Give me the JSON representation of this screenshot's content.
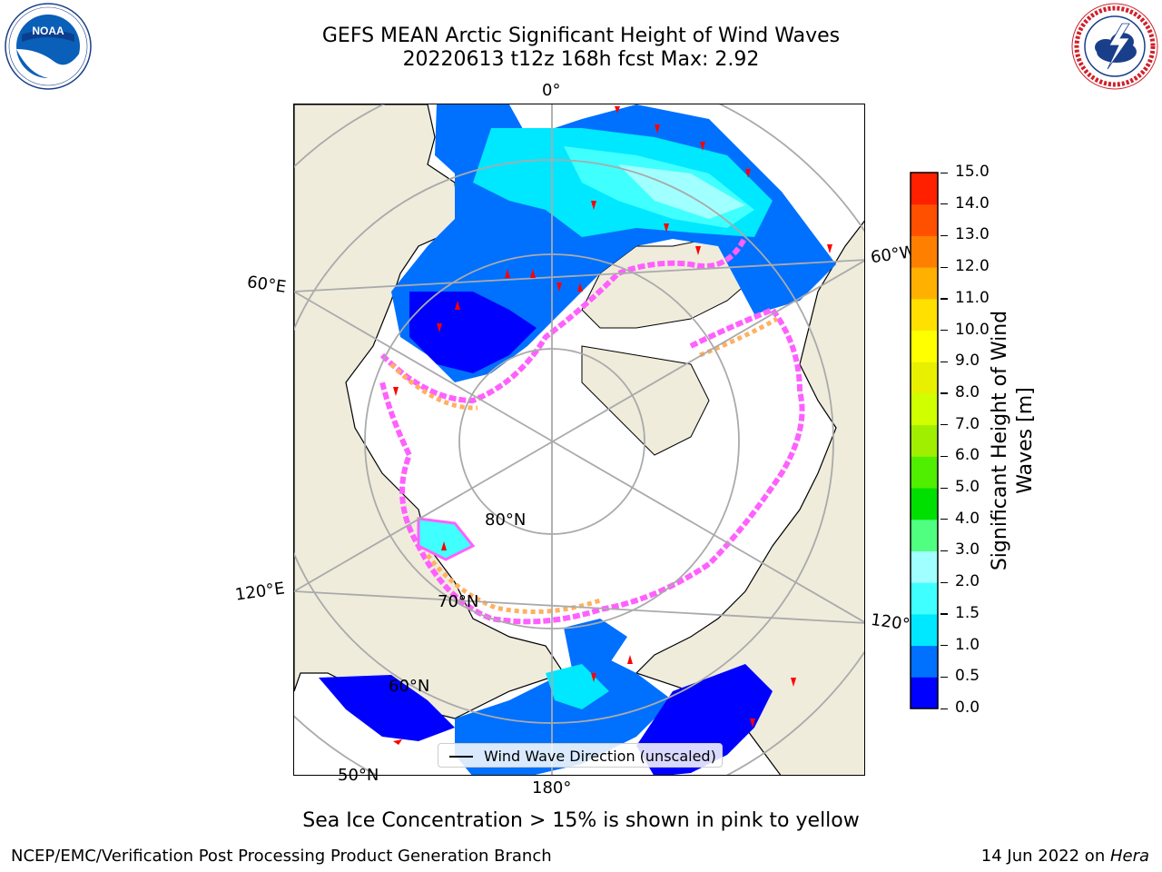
{
  "title": {
    "line1": "GEFS MEAN Arctic Significant Height of Wind Waves",
    "line2": "20220613 t12z 168h fcst   Max: 2.92"
  },
  "logos": {
    "left": {
      "text": "NOAA",
      "ring_text": "NATIONAL OCEANIC AND ATMOSPHERIC ADMINISTRATION",
      "ring_bottom": "U.S. DEPARTMENT OF COMMERCE"
    },
    "right": {
      "ring_text": "NATIONAL WEATHER SERVICE"
    }
  },
  "map": {
    "projection": "north-polar-stereographic",
    "lon_labels": {
      "top": "0°",
      "bottom": "180°",
      "left_upper": "60°E",
      "left_lower": "120°E",
      "right_upper": "60°W",
      "right_lower": "120°W"
    },
    "lat_labels": {
      "lat80": "80°N",
      "lat70": "70°N",
      "lat60": "60°N",
      "lat50": "50°N"
    },
    "colors": {
      "land": "#efecdc",
      "ice_free_ocean": "#ffffff",
      "wave_0": "#0000ff",
      "wave_05": "#0070ff",
      "wave_1": "#00e8ff",
      "wave_15": "#40ffff",
      "wave_2": "#a0ffff",
      "ice_edge_pink": "#ff60ff",
      "ice_edge_orange": "#ffb060",
      "arrow": "#ff0000"
    }
  },
  "legend": {
    "label": "Wind Wave Direction (unscaled)"
  },
  "colorbar": {
    "title_line1": "Significant Height of Wind",
    "title_line2": "Waves [m]",
    "ticks": [
      "15.0",
      "14.0",
      "13.0",
      "12.0",
      "11.0",
      "10.0",
      "9.0",
      "8.0",
      "7.0",
      "6.0",
      "5.0",
      "4.0",
      "3.0",
      "2.0",
      "1.5",
      "1.0",
      "0.5",
      "0.0"
    ],
    "colors": [
      "#0000ff",
      "#0070ff",
      "#00e8ff",
      "#40ffff",
      "#a0ffff",
      "#50ff80",
      "#00e000",
      "#50ee00",
      "#a0ee00",
      "#d0ff00",
      "#e8f000",
      "#ffff00",
      "#ffe000",
      "#ffb000",
      "#ff8000",
      "#ff5000",
      "#ff2000"
    ]
  },
  "caption": "Sea Ice Concentration > 15% is shown in pink to yellow",
  "footer": {
    "left": "NCEP/EMC/Verification Post Processing Product Generation Branch",
    "right_prefix": "14 Jun 2022 on ",
    "right_host": "Hera"
  }
}
